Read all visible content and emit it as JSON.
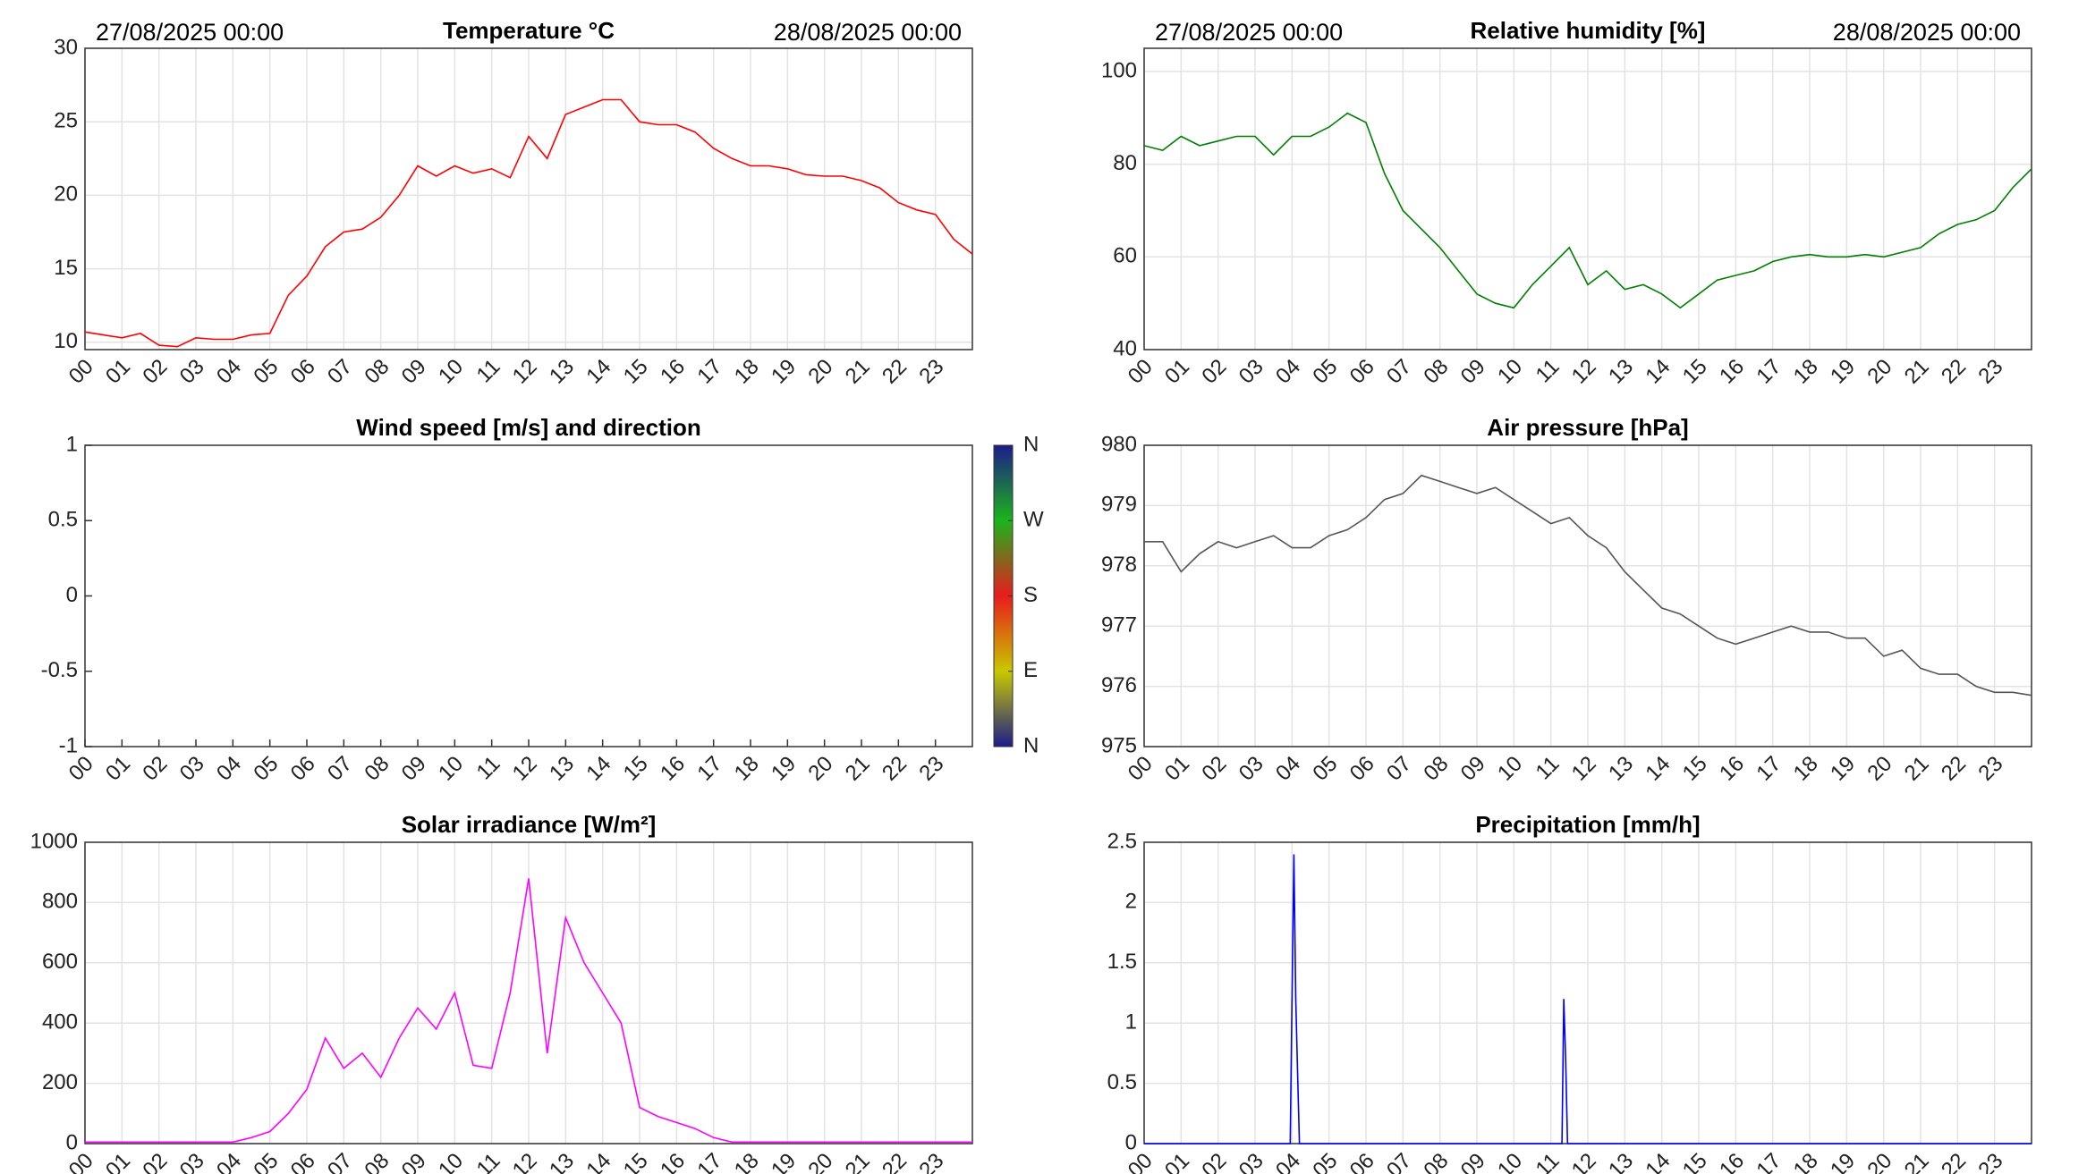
{
  "chart_data": [
    {
      "type": "line",
      "title": "Temperature °C",
      "annotations": [
        "27/08/2025 00:00",
        "28/08/2025 00:00"
      ],
      "x": [
        0,
        0.5,
        1,
        1.5,
        2,
        2.5,
        3,
        3.5,
        4,
        4.5,
        5,
        5.5,
        6,
        6.5,
        7,
        7.5,
        8,
        8.5,
        9,
        9.5,
        10,
        10.5,
        11,
        11.5,
        12,
        12.5,
        13,
        13.5,
        14,
        14.5,
        15,
        15.5,
        16,
        16.5,
        17,
        17.5,
        18,
        18.5,
        19,
        19.5,
        20,
        20.5,
        21,
        21.5,
        22,
        22.5,
        23,
        23.5,
        24
      ],
      "series": [
        {
          "name": "Temperature",
          "color": "#ff0000",
          "values": [
            10.7,
            10.5,
            10.3,
            10.6,
            9.8,
            9.7,
            10.3,
            10.2,
            10.2,
            10.5,
            10.6,
            13.2,
            14.5,
            16.5,
            17.5,
            17.7,
            18.5,
            20,
            22,
            21.3,
            22,
            21.5,
            21.8,
            21.2,
            24,
            22.5,
            25.5,
            26,
            26.5,
            26.5,
            25,
            24.8,
            24.8,
            24.3,
            23.2,
            22.5,
            22,
            22,
            21.8,
            21.4,
            21.3,
            21.3,
            21,
            20.5,
            19.5,
            19,
            18.7,
            17,
            16
          ]
        }
      ],
      "xlim": [
        0,
        24
      ],
      "ylim": [
        9.5,
        30
      ],
      "yticks": [
        10,
        15,
        20,
        25,
        30
      ],
      "xticks": [
        {
          "value": 0,
          "label": "00"
        },
        {
          "value": 1,
          "label": "01"
        },
        {
          "value": 2,
          "label": "02"
        },
        {
          "value": 3,
          "label": "03"
        },
        {
          "value": 4,
          "label": "04"
        },
        {
          "value": 5,
          "label": "05"
        },
        {
          "value": 6,
          "label": "06"
        },
        {
          "value": 7,
          "label": "07"
        },
        {
          "value": 8,
          "label": "08"
        },
        {
          "value": 9,
          "label": "09"
        },
        {
          "value": 10,
          "label": "10"
        },
        {
          "value": 11,
          "label": "11"
        },
        {
          "value": 12,
          "label": "12"
        },
        {
          "value": 13,
          "label": "13"
        },
        {
          "value": 14,
          "label": "14"
        },
        {
          "value": 15,
          "label": "15"
        },
        {
          "value": 16,
          "label": "16"
        },
        {
          "value": 17,
          "label": "17"
        },
        {
          "value": 18,
          "label": "18"
        },
        {
          "value": 19,
          "label": "19"
        },
        {
          "value": 20,
          "label": "20"
        },
        {
          "value": 21,
          "label": "21"
        },
        {
          "value": 22,
          "label": "22"
        },
        {
          "value": 23,
          "label": "23"
        }
      ],
      "grid": true
    },
    {
      "type": "line",
      "title": "Relative humidity [%]",
      "annotations": [
        "27/08/2025 00:00",
        "28/08/2025 00:00"
      ],
      "x": [
        0,
        0.5,
        1,
        1.5,
        2,
        2.5,
        3,
        3.5,
        4,
        4.5,
        5,
        5.5,
        6,
        6.5,
        7,
        7.5,
        8,
        8.5,
        9,
        9.5,
        10,
        10.5,
        11,
        11.5,
        12,
        12.5,
        13,
        13.5,
        14,
        14.5,
        15,
        15.5,
        16,
        16.5,
        17,
        17.5,
        18,
        18.5,
        19,
        19.5,
        20,
        20.5,
        21,
        21.5,
        22,
        22.5,
        23,
        23.5,
        24
      ],
      "series": [
        {
          "name": "Relative humidity",
          "color": "#007f00",
          "values": [
            84,
            83,
            86,
            84,
            85,
            86,
            86,
            82,
            86,
            86,
            88,
            91,
            89,
            78,
            70,
            66,
            62,
            57,
            52,
            50,
            49,
            54,
            58,
            62,
            54,
            57,
            53,
            54,
            52,
            49,
            52,
            55,
            56,
            57,
            59,
            60,
            60.5,
            60,
            60,
            60.5,
            60,
            61,
            62,
            65,
            67,
            68,
            70,
            75,
            79
          ]
        }
      ],
      "xlim": [
        0,
        24
      ],
      "ylim": [
        40,
        105
      ],
      "yticks": [
        40,
        60,
        80,
        100
      ],
      "xticks": [
        {
          "value": 0,
          "label": "00"
        },
        {
          "value": 1,
          "label": "01"
        },
        {
          "value": 2,
          "label": "02"
        },
        {
          "value": 3,
          "label": "03"
        },
        {
          "value": 4,
          "label": "04"
        },
        {
          "value": 5,
          "label": "05"
        },
        {
          "value": 6,
          "label": "06"
        },
        {
          "value": 7,
          "label": "07"
        },
        {
          "value": 8,
          "label": "08"
        },
        {
          "value": 9,
          "label": "09"
        },
        {
          "value": 10,
          "label": "10"
        },
        {
          "value": 11,
          "label": "11"
        },
        {
          "value": 12,
          "label": "12"
        },
        {
          "value": 13,
          "label": "13"
        },
        {
          "value": 14,
          "label": "14"
        },
        {
          "value": 15,
          "label": "15"
        },
        {
          "value": 16,
          "label": "16"
        },
        {
          "value": 17,
          "label": "17"
        },
        {
          "value": 18,
          "label": "18"
        },
        {
          "value": 19,
          "label": "19"
        },
        {
          "value": 20,
          "label": "20"
        },
        {
          "value": 21,
          "label": "21"
        },
        {
          "value": 22,
          "label": "22"
        },
        {
          "value": 23,
          "label": "23"
        }
      ],
      "grid": true
    },
    {
      "type": "line",
      "title": "Wind speed [m/s] and direction",
      "x": [],
      "series": [],
      "xlim": [
        0,
        24
      ],
      "ylim": [
        -1,
        1
      ],
      "yticks": [
        -1,
        -0.5,
        0,
        0.5,
        1
      ],
      "xticks": [
        {
          "value": 0,
          "label": "00"
        },
        {
          "value": 1,
          "label": "01"
        },
        {
          "value": 2,
          "label": "02"
        },
        {
          "value": 3,
          "label": "03"
        },
        {
          "value": 4,
          "label": "04"
        },
        {
          "value": 5,
          "label": "05"
        },
        {
          "value": 6,
          "label": "06"
        },
        {
          "value": 7,
          "label": "07"
        },
        {
          "value": 8,
          "label": "08"
        },
        {
          "value": 9,
          "label": "09"
        },
        {
          "value": 10,
          "label": "10"
        },
        {
          "value": 11,
          "label": "11"
        },
        {
          "value": 12,
          "label": "12"
        },
        {
          "value": 13,
          "label": "13"
        },
        {
          "value": 14,
          "label": "14"
        },
        {
          "value": 15,
          "label": "15"
        },
        {
          "value": 16,
          "label": "16"
        },
        {
          "value": 17,
          "label": "17"
        },
        {
          "value": 18,
          "label": "18"
        },
        {
          "value": 19,
          "label": "19"
        },
        {
          "value": 20,
          "label": "20"
        },
        {
          "value": 21,
          "label": "21"
        },
        {
          "value": 22,
          "label": "22"
        },
        {
          "value": 23,
          "label": "23"
        }
      ],
      "grid": false,
      "colorbar": {
        "lim": [
          0,
          360
        ],
        "colors": [
          "#1c1c8a",
          "#c8c800",
          "#e81c1c",
          "#1cb41c",
          "#1c1c8a"
        ],
        "ticks": [
          {
            "value": 0,
            "label": "N"
          },
          {
            "value": 90,
            "label": "E"
          },
          {
            "value": 180,
            "label": "S"
          },
          {
            "value": 270,
            "label": "W"
          },
          {
            "value": 360,
            "label": "N"
          }
        ]
      }
    },
    {
      "type": "line",
      "title": "Air pressure [hPa]",
      "x": [
        0,
        0.5,
        1,
        1.5,
        2,
        2.5,
        3,
        3.5,
        4,
        4.5,
        5,
        5.5,
        6,
        6.5,
        7,
        7.5,
        8,
        8.5,
        9,
        9.5,
        10,
        10.5,
        11,
        11.5,
        12,
        12.5,
        13,
        13.5,
        14,
        14.5,
        15,
        15.5,
        16,
        16.5,
        17,
        17.5,
        18,
        18.5,
        19,
        19.5,
        20,
        20.5,
        21,
        21.5,
        22,
        22.5,
        23,
        23.5,
        24
      ],
      "series": [
        {
          "name": "Air pressure",
          "color": "#555555",
          "values": [
            978.4,
            978.4,
            977.9,
            978.2,
            978.4,
            978.3,
            978.4,
            978.5,
            978.3,
            978.3,
            978.5,
            978.6,
            978.8,
            979.1,
            979.2,
            979.5,
            979.4,
            979.3,
            979.2,
            979.3,
            979.1,
            978.9,
            978.7,
            978.8,
            978.5,
            978.3,
            977.9,
            977.6,
            977.3,
            977.2,
            977.0,
            976.8,
            976.7,
            976.8,
            976.9,
            977.0,
            976.9,
            976.9,
            976.8,
            976.8,
            976.5,
            976.6,
            976.3,
            976.2,
            976.2,
            976.0,
            975.9,
            975.9,
            975.85
          ]
        }
      ],
      "xlim": [
        0,
        24
      ],
      "ylim": [
        975,
        980
      ],
      "yticks": [
        975,
        976,
        977,
        978,
        979,
        980
      ],
      "xticks": [
        {
          "value": 0,
          "label": "00"
        },
        {
          "value": 1,
          "label": "01"
        },
        {
          "value": 2,
          "label": "02"
        },
        {
          "value": 3,
          "label": "03"
        },
        {
          "value": 4,
          "label": "04"
        },
        {
          "value": 5,
          "label": "05"
        },
        {
          "value": 6,
          "label": "06"
        },
        {
          "value": 7,
          "label": "07"
        },
        {
          "value": 8,
          "label": "08"
        },
        {
          "value": 9,
          "label": "09"
        },
        {
          "value": 10,
          "label": "10"
        },
        {
          "value": 11,
          "label": "11"
        },
        {
          "value": 12,
          "label": "12"
        },
        {
          "value": 13,
          "label": "13"
        },
        {
          "value": 14,
          "label": "14"
        },
        {
          "value": 15,
          "label": "15"
        },
        {
          "value": 16,
          "label": "16"
        },
        {
          "value": 17,
          "label": "17"
        },
        {
          "value": 18,
          "label": "18"
        },
        {
          "value": 19,
          "label": "19"
        },
        {
          "value": 20,
          "label": "20"
        },
        {
          "value": 21,
          "label": "21"
        },
        {
          "value": 22,
          "label": "22"
        },
        {
          "value": 23,
          "label": "23"
        }
      ],
      "grid": true
    },
    {
      "type": "line",
      "title": "Solar irradiance [W/m²]",
      "x": [
        0,
        0.5,
        1,
        1.5,
        2,
        2.5,
        3,
        3.5,
        4,
        4.5,
        5,
        5.5,
        6,
        6.5,
        7,
        7.5,
        8,
        8.5,
        9,
        9.5,
        10,
        10.5,
        11,
        11.5,
        12,
        12.5,
        13,
        13.5,
        14,
        14.5,
        15,
        15.5,
        16,
        16.5,
        17,
        17.5,
        18,
        18.5,
        19,
        19.5,
        20,
        20.5,
        21,
        21.5,
        22,
        22.5,
        23,
        23.5,
        24
      ],
      "series": [
        {
          "name": "Solar irradiance",
          "color": "#ff00ff",
          "values": [
            5,
            5,
            5,
            5,
            5,
            5,
            5,
            5,
            5,
            20,
            40,
            100,
            180,
            350,
            250,
            300,
            220,
            350,
            450,
            380,
            500,
            260,
            250,
            500,
            880,
            300,
            750,
            600,
            500,
            400,
            120,
            90,
            70,
            50,
            20,
            5,
            5,
            5,
            5,
            5,
            5,
            5,
            5,
            5,
            5,
            5,
            5,
            5,
            5
          ]
        }
      ],
      "xlim": [
        0,
        24
      ],
      "ylim": [
        0,
        1000
      ],
      "yticks": [
        0,
        200,
        400,
        600,
        800,
        1000
      ],
      "xticks": [
        {
          "value": 0,
          "label": "00"
        },
        {
          "value": 1,
          "label": "01"
        },
        {
          "value": 2,
          "label": "02"
        },
        {
          "value": 3,
          "label": "03"
        },
        {
          "value": 4,
          "label": "04"
        },
        {
          "value": 5,
          "label": "05"
        },
        {
          "value": 6,
          "label": "06"
        },
        {
          "value": 7,
          "label": "07"
        },
        {
          "value": 8,
          "label": "08"
        },
        {
          "value": 9,
          "label": "09"
        },
        {
          "value": 10,
          "label": "10"
        },
        {
          "value": 11,
          "label": "11"
        },
        {
          "value": 12,
          "label": "12"
        },
        {
          "value": 13,
          "label": "13"
        },
        {
          "value": 14,
          "label": "14"
        },
        {
          "value": 15,
          "label": "15"
        },
        {
          "value": 16,
          "label": "16"
        },
        {
          "value": 17,
          "label": "17"
        },
        {
          "value": 18,
          "label": "18"
        },
        {
          "value": 19,
          "label": "19"
        },
        {
          "value": 20,
          "label": "20"
        },
        {
          "value": 21,
          "label": "21"
        },
        {
          "value": 22,
          "label": "22"
        },
        {
          "value": 23,
          "label": "23"
        }
      ],
      "grid": true
    },
    {
      "type": "line",
      "title": "Precipitation [mm/h]",
      "x": [
        0,
        3.95,
        4.0,
        4.05,
        4.1,
        4.15,
        4.2,
        11.3,
        11.35,
        11.4,
        11.45,
        24
      ],
      "series": [
        {
          "name": "Precipitation",
          "color": "#0000ff",
          "values": [
            0,
            0,
            1.2,
            2.4,
            1.2,
            0.6,
            0,
            0,
            1.2,
            0.7,
            0,
            0
          ]
        }
      ],
      "xlim": [
        0,
        24
      ],
      "ylim": [
        0,
        2.5
      ],
      "yticks": [
        0,
        0.5,
        1,
        1.5,
        2,
        2.5
      ],
      "xticks": [
        {
          "value": 0,
          "label": "00"
        },
        {
          "value": 1,
          "label": "01"
        },
        {
          "value": 2,
          "label": "02"
        },
        {
          "value": 3,
          "label": "03"
        },
        {
          "value": 4,
          "label": "04"
        },
        {
          "value": 5,
          "label": "05"
        },
        {
          "value": 6,
          "label": "06"
        },
        {
          "value": 7,
          "label": "07"
        },
        {
          "value": 8,
          "label": "08"
        },
        {
          "value": 9,
          "label": "09"
        },
        {
          "value": 10,
          "label": "10"
        },
        {
          "value": 11,
          "label": "11"
        },
        {
          "value": 12,
          "label": "12"
        },
        {
          "value": 13,
          "label": "13"
        },
        {
          "value": 14,
          "label": "14"
        },
        {
          "value": 15,
          "label": "15"
        },
        {
          "value": 16,
          "label": "16"
        },
        {
          "value": 17,
          "label": "17"
        },
        {
          "value": 18,
          "label": "18"
        },
        {
          "value": 19,
          "label": "19"
        },
        {
          "value": 20,
          "label": "20"
        },
        {
          "value": 21,
          "label": "21"
        },
        {
          "value": 22,
          "label": "22"
        },
        {
          "value": 23,
          "label": "23"
        }
      ],
      "grid": true
    }
  ]
}
